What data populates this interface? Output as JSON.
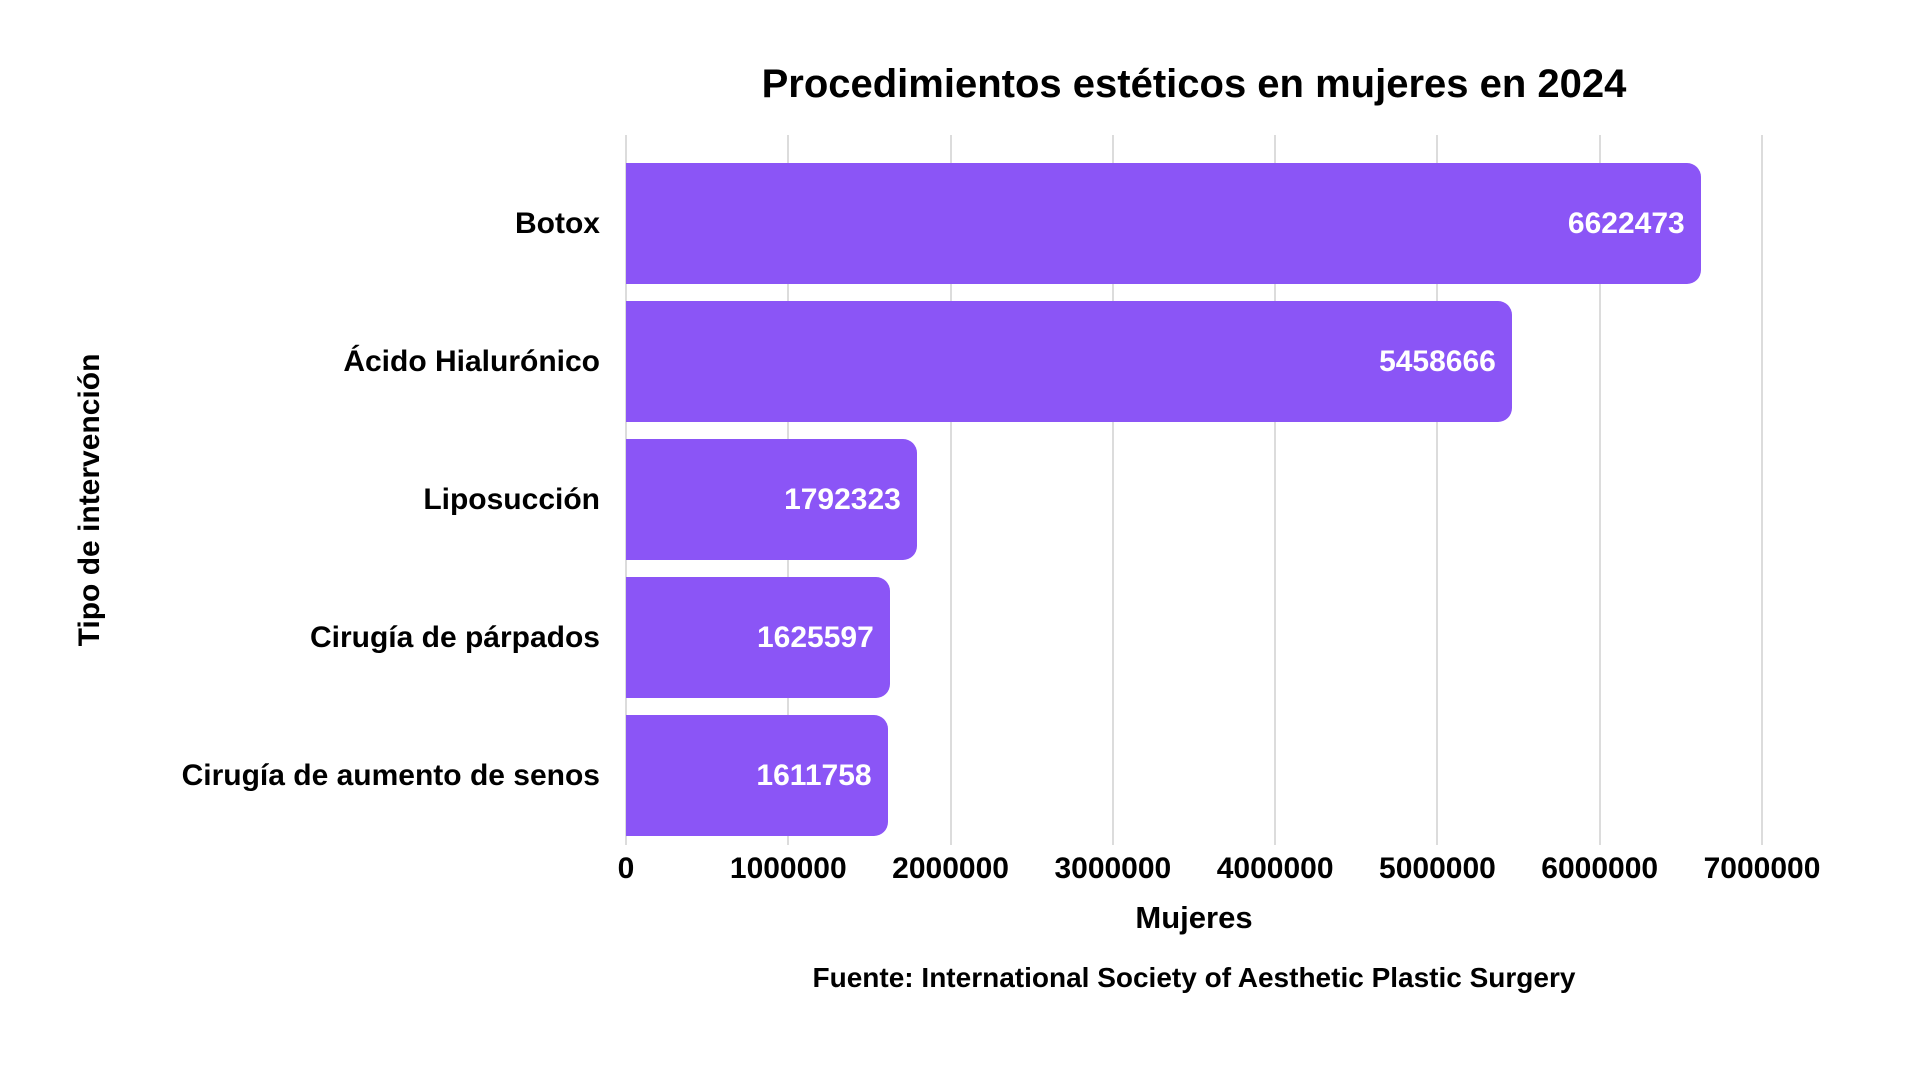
{
  "chart_data": {
    "type": "bar",
    "orientation": "horizontal",
    "title": "Procedimientos estéticos en mujeres en 2024",
    "categories": [
      "Botox",
      "Ácido Hialurónico",
      "Liposucción",
      "Cirugía de párpados",
      "Cirugía de aumento de senos"
    ],
    "values": [
      6622473,
      5458666,
      1792323,
      1625597,
      1611758
    ],
    "value_labels": [
      "6622473",
      "5458666",
      "1792323",
      "1625597",
      "1611758"
    ],
    "xlabel": "Mujeres",
    "ylabel": "Tipo de intervención",
    "xlim": [
      0,
      7000000
    ],
    "x_ticks": [
      0,
      1000000,
      2000000,
      3000000,
      4000000,
      5000000,
      6000000,
      7000000
    ],
    "x_tick_labels": [
      "0",
      "1000000",
      "2000000",
      "3000000",
      "4000000",
      "5000000",
      "6000000",
      "7000000"
    ],
    "grid": "vertical-gridlines-on",
    "legend": "none",
    "source": "Fuente: International Society of Aesthetic Plastic Surgery",
    "colors": {
      "bar": "#8B55F6",
      "value_text": "#FFFFFF",
      "text": "#000000",
      "gridline": "#DCDCDC",
      "background": "#FFFFFF"
    }
  }
}
